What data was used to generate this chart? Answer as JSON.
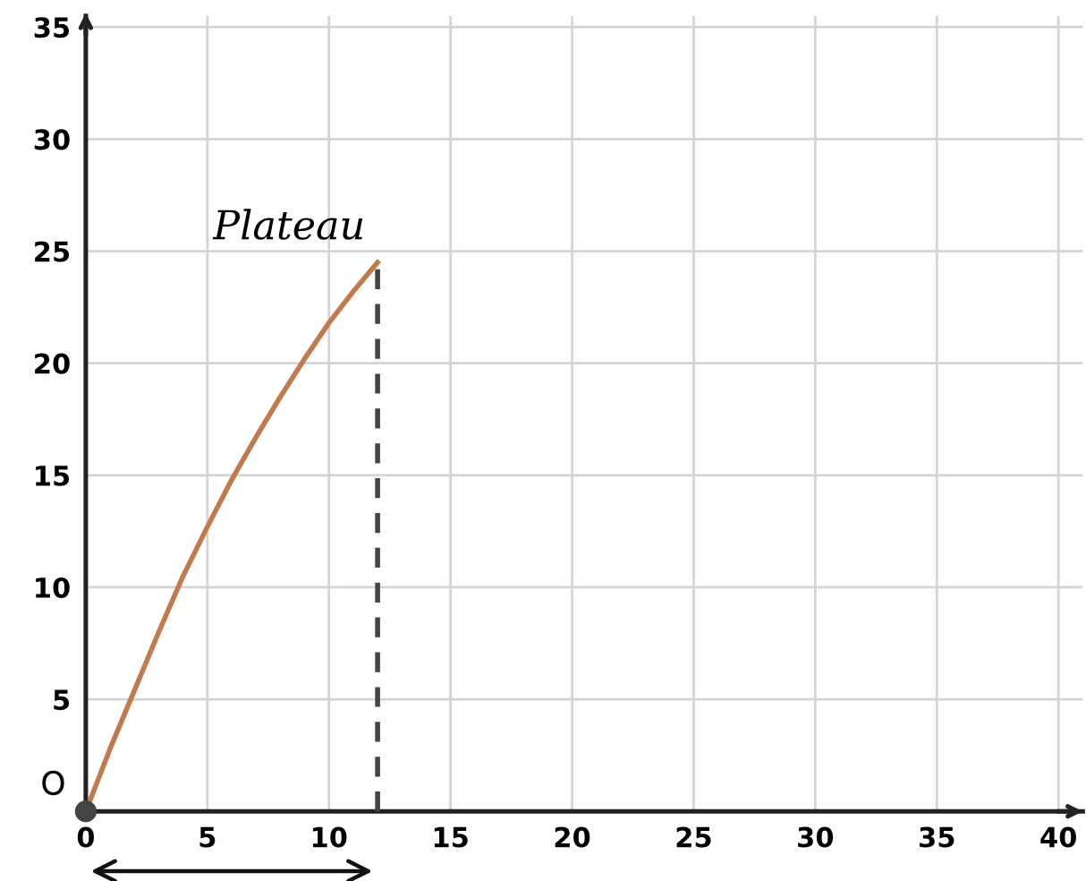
{
  "chart_data": {
    "type": "line",
    "series": [
      {
        "color": "#c27a4c",
        "x": [
          0,
          1,
          2,
          3,
          4,
          5,
          6,
          7,
          8,
          9,
          10,
          11,
          12
        ],
        "values": [
          0,
          2.8,
          5.4,
          8.0,
          10.5,
          12.7,
          14.8,
          16.7,
          18.5,
          20.2,
          21.8,
          23.2,
          24.5
        ]
      },
      {
        "type": "line",
        "color": "#444444",
        "line_style": "dashed",
        "x": [
          12,
          12
        ],
        "values": [
          0,
          24.5
        ]
      },
      {
        "type": "scatter",
        "color": "#444444",
        "marker": "circle",
        "x": [
          0
        ],
        "values": [
          0
        ]
      }
    ],
    "annotations": [
      {
        "text": "Plateau",
        "x": 12,
        "y": 24.5
      },
      {
        "text": "O",
        "x": 0,
        "y": 0
      }
    ],
    "xlim": [
      0,
      41
    ],
    "ylim": [
      0,
      35.5
    ],
    "xticks": [
      0,
      5,
      10,
      15,
      20,
      25,
      30,
      35,
      40
    ],
    "yticks": [
      5,
      10,
      15,
      20,
      25,
      30,
      35
    ],
    "grid": true
  }
}
